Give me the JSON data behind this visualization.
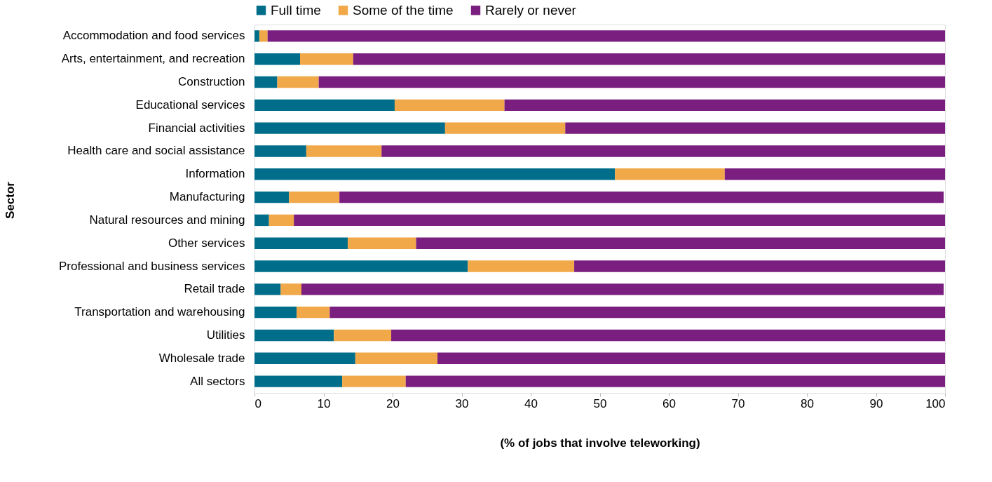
{
  "chart_data": {
    "type": "bar",
    "orientation": "horizontal",
    "stacked": true,
    "xlabel": "(% of jobs that involve teleworking)",
    "ylabel": "Sector",
    "legend": "top",
    "grid": false,
    "categories": [
      "Accommodation and food services",
      "Arts, entertainment, and recreation",
      "Construction",
      "Educational services",
      "Financial activities",
      "Health care and social assistance",
      "Information",
      "Manufacturing",
      "Natural resources and mining",
      "Other services",
      "Professional and business services",
      "Retail trade",
      "Transportation and warehousing",
      "Utilities",
      "Wholesale trade",
      "All sectors"
    ],
    "xlim": [
      0,
      100
    ],
    "xticks": [
      0,
      10,
      20,
      30,
      40,
      50,
      60,
      70,
      80,
      90,
      100
    ],
    "series": [
      {
        "name": "Full time",
        "color": "#006e8a",
        "values": [
          0.7,
          6.6,
          3.3,
          20.3,
          27.6,
          7.5,
          52.2,
          5.0,
          2.1,
          13.5,
          30.9,
          3.8,
          6.1,
          11.5,
          14.6,
          12.7
        ]
      },
      {
        "name": "Some of the time",
        "color": "#f0a848",
        "values": [
          1.2,
          7.7,
          6.0,
          15.9,
          17.4,
          10.9,
          15.9,
          7.3,
          3.6,
          9.9,
          15.4,
          3.0,
          4.8,
          8.3,
          11.9,
          9.2
        ]
      },
      {
        "name": "Rarely or never",
        "color": "#7a1f7f",
        "values": [
          98.1,
          85.7,
          90.7,
          63.8,
          55.0,
          81.6,
          31.9,
          87.5,
          94.3,
          76.6,
          53.7,
          93.0,
          89.1,
          80.2,
          73.5,
          78.1
        ]
      }
    ]
  }
}
